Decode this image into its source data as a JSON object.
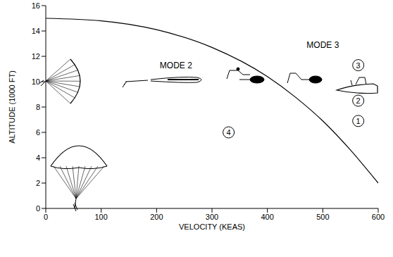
{
  "chart_data": {
    "type": "line",
    "x_label": "VELOCITY (KEAS)",
    "y_label": "ALTITUDE (1000 FT)",
    "x": [
      0,
      100,
      200,
      300,
      400,
      450,
      500,
      550,
      600
    ],
    "values": [
      15,
      14.8,
      14.1,
      12.7,
      10.4,
      8.8,
      6.9,
      4.6,
      2
    ],
    "color": "#000000",
    "xlim": [
      0,
      600
    ],
    "ylim": [
      0,
      16
    ],
    "xticks": [
      0,
      100,
      200,
      300,
      400,
      500,
      600
    ],
    "yticks": [
      0,
      2,
      4,
      6,
      8,
      10,
      12,
      14,
      16
    ],
    "grid": false,
    "annotations": [
      {
        "text": "MODE 2",
        "x": 235,
        "y": 11.3
      },
      {
        "text": "MODE 3",
        "x": 500,
        "y": 12.9
      }
    ],
    "callouts": [
      {
        "text": "3",
        "x": 564,
        "y": 11.3
      },
      {
        "text": "2",
        "x": 564,
        "y": 8.5
      },
      {
        "text": "1",
        "x": 564,
        "y": 6.9
      },
      {
        "text": "4",
        "x": 330,
        "y": 6.0
      }
    ]
  }
}
